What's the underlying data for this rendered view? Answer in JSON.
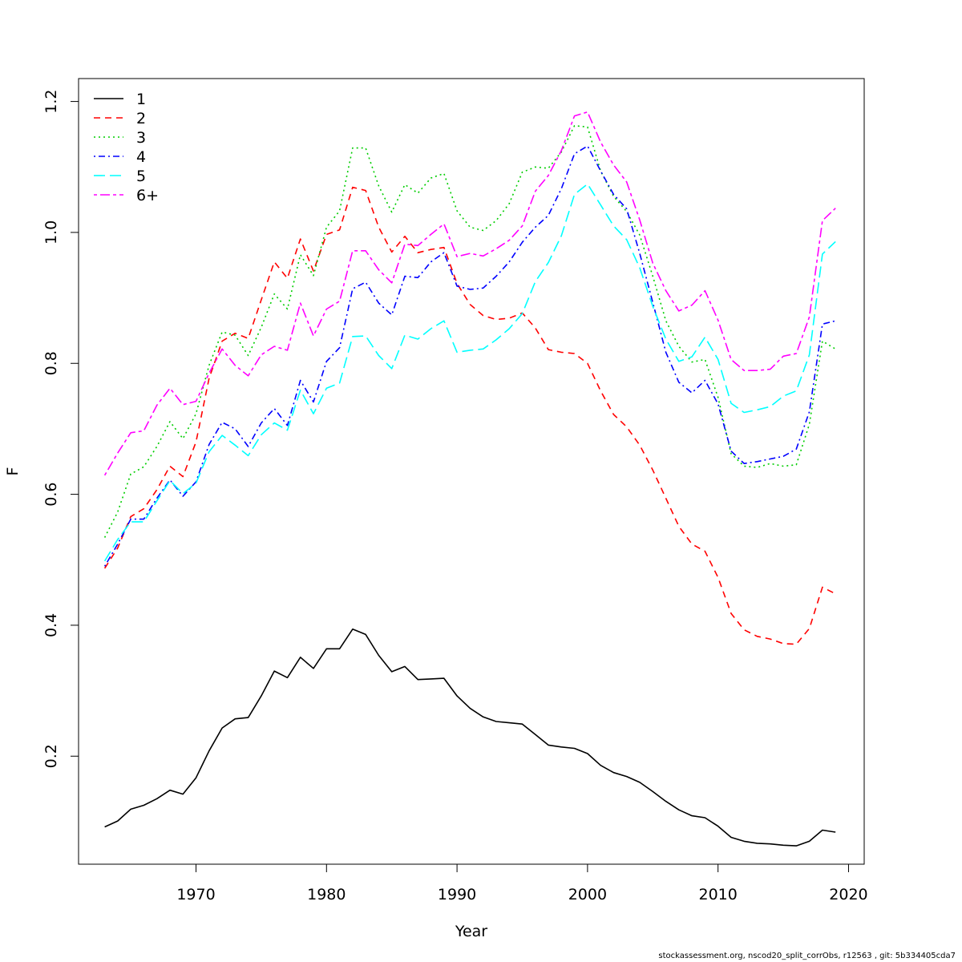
{
  "footer_text": "stockassessment.org, nscod20_split_corrObs, r12563 , git: 5b334405cda7",
  "chart_data": {
    "type": "line",
    "xlabel": "Year",
    "ylabel": "F",
    "xlim": [
      1961,
      2021.2
    ],
    "ylim": [
      0.035,
      1.235
    ],
    "x_ticks": [
      1970,
      1980,
      1990,
      2000,
      2010,
      2020
    ],
    "y_ticks": [
      0.2,
      0.4,
      0.6,
      0.8,
      1.0,
      1.2
    ],
    "y_tick_labels": [
      "0.2",
      "0.4",
      "0.6",
      "0.8",
      "1.0",
      "1.2"
    ],
    "grid": false,
    "legend_position": "top-left",
    "x": [
      1963,
      1964,
      1965,
      1966,
      1967,
      1968,
      1969,
      1970,
      1971,
      1972,
      1973,
      1974,
      1975,
      1976,
      1977,
      1978,
      1979,
      1980,
      1981,
      1982,
      1983,
      1984,
      1985,
      1986,
      1987,
      1988,
      1989,
      1990,
      1991,
      1992,
      1993,
      1994,
      1995,
      1996,
      1997,
      1998,
      1999,
      2000,
      2001,
      2002,
      2003,
      2004,
      2005,
      2006,
      2007,
      2008,
      2009,
      2010,
      2011,
      2012,
      2013,
      2014,
      2015,
      2016,
      2017,
      2018,
      2019
    ],
    "series": [
      {
        "name": "1",
        "color": "#000000",
        "dash": "solid",
        "values": [
          0.092,
          0.101,
          0.119,
          0.125,
          0.135,
          0.148,
          0.142,
          0.167,
          0.208,
          0.243,
          0.257,
          0.259,
          0.292,
          0.33,
          0.32,
          0.351,
          0.334,
          0.364,
          0.364,
          0.394,
          0.386,
          0.354,
          0.329,
          0.337,
          0.317,
          0.318,
          0.319,
          0.292,
          0.273,
          0.26,
          0.253,
          0.251,
          0.249,
          0.233,
          0.217,
          0.214,
          0.212,
          0.204,
          0.186,
          0.175,
          0.169,
          0.16,
          0.146,
          0.131,
          0.118,
          0.109,
          0.106,
          0.093,
          0.076,
          0.07,
          0.067,
          0.066,
          0.064,
          0.063,
          0.07,
          0.087,
          0.084
        ]
      },
      {
        "name": "2",
        "color": "#ff0000",
        "dash": "dashed",
        "values": [
          0.487,
          0.518,
          0.566,
          0.578,
          0.607,
          0.643,
          0.627,
          0.68,
          0.777,
          0.834,
          0.846,
          0.838,
          0.897,
          0.955,
          0.93,
          0.99,
          0.941,
          0.997,
          1.004,
          1.069,
          1.064,
          1.008,
          0.97,
          0.994,
          0.969,
          0.974,
          0.977,
          0.922,
          0.89,
          0.873,
          0.867,
          0.869,
          0.877,
          0.854,
          0.821,
          0.817,
          0.815,
          0.8,
          0.758,
          0.722,
          0.703,
          0.675,
          0.637,
          0.594,
          0.551,
          0.524,
          0.513,
          0.473,
          0.418,
          0.393,
          0.383,
          0.379,
          0.372,
          0.371,
          0.395,
          0.458,
          0.448
        ]
      },
      {
        "name": "3",
        "color": "#00cd00",
        "dash": "dotted",
        "values": [
          0.534,
          0.573,
          0.631,
          0.642,
          0.673,
          0.711,
          0.685,
          0.723,
          0.797,
          0.848,
          0.843,
          0.812,
          0.855,
          0.906,
          0.883,
          0.966,
          0.934,
          1.008,
          1.033,
          1.129,
          1.129,
          1.071,
          1.031,
          1.073,
          1.06,
          1.083,
          1.09,
          1.033,
          1.008,
          1.003,
          1.018,
          1.044,
          1.092,
          1.1,
          1.098,
          1.123,
          1.163,
          1.161,
          1.094,
          1.055,
          1.032,
          0.996,
          0.933,
          0.865,
          0.826,
          0.802,
          0.806,
          0.748,
          0.662,
          0.643,
          0.641,
          0.647,
          0.643,
          0.645,
          0.707,
          0.834,
          0.822
        ]
      },
      {
        "name": "4",
        "color": "#0000ff",
        "dash": "dotdash",
        "values": [
          0.49,
          0.524,
          0.562,
          0.562,
          0.594,
          0.622,
          0.597,
          0.619,
          0.676,
          0.71,
          0.7,
          0.673,
          0.709,
          0.731,
          0.705,
          0.774,
          0.741,
          0.803,
          0.824,
          0.914,
          0.924,
          0.892,
          0.874,
          0.933,
          0.931,
          0.955,
          0.969,
          0.918,
          0.913,
          0.915,
          0.933,
          0.955,
          0.985,
          1.008,
          1.026,
          1.067,
          1.12,
          1.132,
          1.094,
          1.058,
          1.036,
          0.968,
          0.893,
          0.817,
          0.771,
          0.755,
          0.774,
          0.738,
          0.666,
          0.647,
          0.65,
          0.654,
          0.658,
          0.669,
          0.726,
          0.86,
          0.865
        ]
      },
      {
        "name": "5",
        "color": "#00ffff",
        "dash": "longdash",
        "values": [
          0.498,
          0.531,
          0.558,
          0.558,
          0.59,
          0.621,
          0.601,
          0.617,
          0.665,
          0.69,
          0.675,
          0.659,
          0.691,
          0.709,
          0.698,
          0.759,
          0.723,
          0.762,
          0.77,
          0.841,
          0.842,
          0.812,
          0.792,
          0.843,
          0.837,
          0.853,
          0.865,
          0.817,
          0.82,
          0.822,
          0.836,
          0.853,
          0.876,
          0.925,
          0.954,
          0.995,
          1.058,
          1.074,
          1.042,
          1.01,
          0.989,
          0.946,
          0.887,
          0.837,
          0.803,
          0.81,
          0.84,
          0.806,
          0.739,
          0.725,
          0.729,
          0.734,
          0.75,
          0.758,
          0.813,
          0.967,
          0.986
        ]
      },
      {
        "name": "6+",
        "color": "#ff00ff",
        "dash": "twodash",
        "values": [
          0.629,
          0.663,
          0.694,
          0.697,
          0.736,
          0.762,
          0.737,
          0.742,
          0.785,
          0.822,
          0.797,
          0.781,
          0.813,
          0.826,
          0.82,
          0.892,
          0.842,
          0.883,
          0.895,
          0.972,
          0.972,
          0.943,
          0.923,
          0.982,
          0.98,
          0.997,
          1.013,
          0.963,
          0.968,
          0.964,
          0.975,
          0.988,
          1.01,
          1.063,
          1.087,
          1.125,
          1.178,
          1.184,
          1.138,
          1.103,
          1.077,
          1.019,
          0.953,
          0.911,
          0.88,
          0.889,
          0.911,
          0.866,
          0.806,
          0.789,
          0.789,
          0.791,
          0.811,
          0.815,
          0.871,
          1.018,
          1.037
        ]
      }
    ]
  }
}
